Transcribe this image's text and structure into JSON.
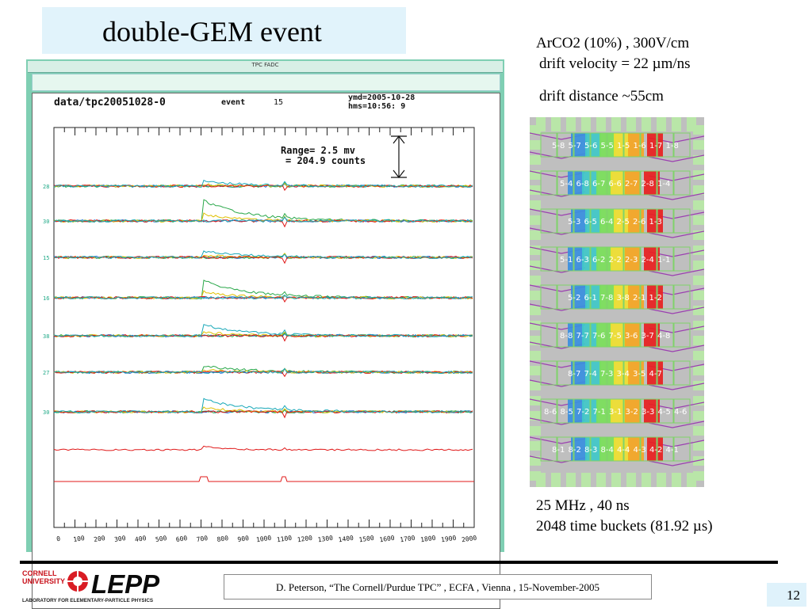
{
  "slide": {
    "title": "double-GEM event",
    "info_line1": "ArCO2 (10%) , 300V/cm",
    "info_line2": "drift velocity = 22 µm/ns",
    "info_line3": "drift distance ~55cm",
    "timing_line1": "25 MHz , 40 ns",
    "timing_line2": "2048 time buckets  (81.92 µs)",
    "citation": "D. Peterson,  “The Cornell/Purdue TPC” ,  ECFA , Vienna , 15-November-2005",
    "page_number": "12"
  },
  "logo": {
    "cornell": "CORNELL",
    "university": "UNIVERSITY",
    "lepp": "LEPP",
    "lab": "LABORATORY FOR ELEMENTARY-PARTICLE PHYSICS"
  },
  "scope": {
    "window_title": "TPC FADC",
    "file": "data/tpc20051028-0",
    "event_label": "event",
    "event_number": "15",
    "ymd": "ymd=2005-10-28",
    "hms": "hms=10:56: 9",
    "range_line1": "Range=    2.5 mv",
    "range_line2": "=  204.9 counts",
    "x_ticks": [
      "0",
      "100",
      "200",
      "300",
      "400",
      "500",
      "600",
      "700",
      "800",
      "900",
      "1000",
      "1100",
      "1200",
      "1300",
      "1400",
      "1500",
      "1600",
      "1700",
      "1800",
      "1900",
      "2000"
    ],
    "channel_labels": [
      "28",
      "30",
      "15",
      "16",
      "38",
      "27",
      "30"
    ],
    "colors": {
      "blue": "#1f6fd6",
      "green": "#2aa84a",
      "yellow": "#e0c000",
      "red": "#e01818",
      "cyan": "#18a8b8"
    }
  },
  "pad_map": {
    "rows": [
      [
        "5-8",
        "5-7",
        "5-6",
        "5-5",
        "1-5",
        "1-6",
        "1-7",
        "1-8"
      ],
      [
        "5-4",
        "6-8",
        "6-7",
        "6-6",
        "2-7",
        "2-8",
        "1-4"
      ],
      [
        "5-3",
        "6-5",
        "6-4",
        "2-5",
        "2-6",
        "1-3"
      ],
      [
        "5-1",
        "6-3",
        "6-2",
        "2-2",
        "2-3",
        "2-4",
        "1-1"
      ],
      [
        "5-2",
        "6-1",
        "7-8",
        "3-8",
        "2-1",
        "1-2"
      ],
      [
        "8-8",
        "7-7",
        "7-6",
        "7-5",
        "3-6",
        "3-7",
        "4-8"
      ],
      [
        "8-7",
        "7-4",
        "7-3",
        "3-4",
        "3-5",
        "4-7"
      ],
      [
        "8-6",
        "8-5",
        "7-2",
        "7-1",
        "3-1",
        "3-2",
        "3-3",
        "4-5",
        "4-6"
      ],
      [
        "8-1",
        "8-2",
        "8-3",
        "8-4",
        "4-4",
        "4-3",
        "4-2",
        "4-1"
      ]
    ]
  }
}
